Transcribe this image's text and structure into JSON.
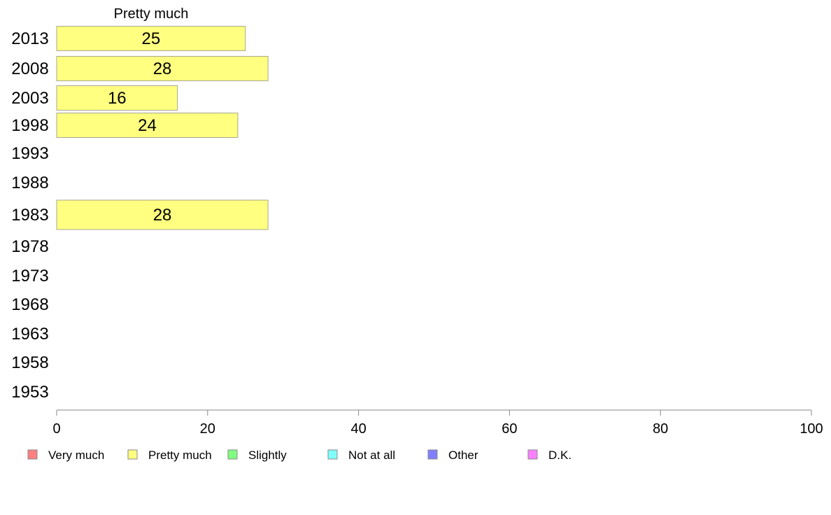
{
  "chart_data": {
    "type": "bar",
    "orientation": "horizontal",
    "series_title": "Pretty much",
    "categories": [
      "2013",
      "2008",
      "2003",
      "1998",
      "1993",
      "1988",
      "1983",
      "1978",
      "1973",
      "1968",
      "1963",
      "1958",
      "1953"
    ],
    "series": [
      {
        "name": "Pretty much",
        "color": "#ffff80",
        "values": [
          25,
          28,
          16,
          24,
          null,
          null,
          28,
          null,
          null,
          null,
          null,
          null,
          null
        ]
      }
    ],
    "xlim": [
      0,
      100
    ],
    "x_ticks": [
      0,
      20,
      40,
      60,
      80,
      100
    ],
    "legend": {
      "placement": "bottom",
      "items": [
        {
          "label": "Very much",
          "color": "#ff8080"
        },
        {
          "label": "Pretty much",
          "color": "#ffff80"
        },
        {
          "label": "Slightly",
          "color": "#80ff80"
        },
        {
          "label": "Not at all",
          "color": "#80ffff"
        },
        {
          "label": "Other",
          "color": "#8080ff"
        },
        {
          "label": "D.K.",
          "color": "#ff80ff"
        }
      ]
    },
    "grid": false
  }
}
